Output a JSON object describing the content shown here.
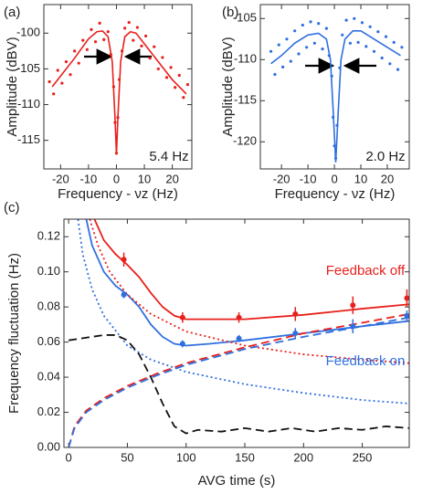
{
  "chart_data": [
    {
      "type": "scatter",
      "panel_label": "(a)",
      "annotation": "5.4 Hz",
      "x_label": "Frequency - νz (Hz)",
      "y_label": "Amplitude (dBV)",
      "xlim": [
        -26,
        27
      ],
      "ylim": [
        -119,
        -96
      ],
      "xticks": [
        -20,
        -10,
        0,
        10,
        20
      ],
      "yticks": [
        -100,
        -105,
        -110,
        -115
      ],
      "series": [
        {
          "style": "points",
          "color": "#e8201c",
          "x": [
            -24,
            -22.5,
            -21,
            -19.5,
            -18,
            -16.5,
            -15,
            -13.5,
            -12,
            -10.5,
            -9,
            -7.5,
            -6,
            -4.5,
            -3,
            -2,
            -1,
            -0.5,
            0,
            0.5,
            1,
            2,
            3,
            4.5,
            6,
            7.5,
            9,
            10.5,
            12,
            13.5,
            15,
            16.5,
            18,
            19.5,
            21,
            22.5,
            24,
            25.5
          ],
          "values": [
            -106.8,
            -108.5,
            -105.2,
            -107,
            -104,
            -105.8,
            -102.5,
            -104.2,
            -101,
            -102.3,
            -99.5,
            -101.2,
            -98.6,
            -100.9,
            -99.8,
            -103,
            -107.5,
            -112.5,
            -116.8,
            -111.8,
            -106.5,
            -102.5,
            -99.3,
            -98.5,
            -101,
            -99.2,
            -101.8,
            -100.4,
            -103.5,
            -101.9,
            -105,
            -103.4,
            -106.2,
            -104.8,
            -107.6,
            -105.9,
            -109,
            -107.2
          ]
        },
        {
          "style": "solid",
          "color": "#e8201c",
          "x": [
            -23,
            -20,
            -15,
            -10,
            -7,
            -5,
            -3,
            -1.5,
            -0.5,
            0,
            0.5,
            1.5,
            3,
            5,
            7,
            10,
            15,
            20,
            25
          ],
          "values": [
            -107.5,
            -106,
            -103.5,
            -100.8,
            -99.8,
            -99.7,
            -100.5,
            -104,
            -112,
            -117,
            -112,
            -104,
            -100.5,
            -99.8,
            -100,
            -101.5,
            -104,
            -106.5,
            -108.5
          ]
        }
      ]
    },
    {
      "type": "scatter",
      "panel_label": "(b)",
      "annotation": "2.0 Hz",
      "x_label": "Frequency - νz (Hz)",
      "y_label": "Amplitude (dBV)",
      "xlim": [
        -28,
        28.3
      ],
      "ylim": [
        -123.3,
        -103.3
      ],
      "xticks": [
        -20,
        -10,
        0,
        10,
        20
      ],
      "yticks": [
        -105,
        -110,
        -115,
        -120
      ],
      "series": [
        {
          "style": "points",
          "color": "#2f6fe0",
          "x": [
            -24,
            -22.5,
            -21,
            -19.5,
            -18,
            -16.5,
            -15,
            -13.5,
            -12,
            -10.5,
            -9,
            -7.5,
            -6,
            -4.5,
            -3,
            -2,
            -1,
            -0.5,
            0,
            0.5,
            1,
            2,
            3,
            4.5,
            6,
            7.5,
            9,
            10.5,
            12,
            13.5,
            15,
            16.5,
            18,
            19.5,
            21,
            22.5,
            24,
            25.5
          ],
          "values": [
            -109,
            -111.8,
            -108.2,
            -110.9,
            -107.5,
            -110.2,
            -106.5,
            -109.3,
            -105.8,
            -108.5,
            -105.4,
            -108,
            -105.6,
            -108.7,
            -106.2,
            -109.5,
            -112,
            -117,
            -120.5,
            -122,
            -118,
            -111,
            -107,
            -105.2,
            -108,
            -105,
            -107.9,
            -105.5,
            -108.4,
            -106,
            -109,
            -106.6,
            -109.8,
            -107.2,
            -110.5,
            -107.9,
            -111.2,
            -108.5
          ]
        },
        {
          "style": "solid",
          "color": "#2f6fe0",
          "x": [
            -24,
            -20,
            -15,
            -10,
            -6,
            -3,
            -1.5,
            -0.5,
            0.5,
            1.5,
            2.5,
            4,
            7,
            10,
            15,
            20,
            25
          ],
          "values": [
            -110.5,
            -109.5,
            -108,
            -107,
            -106.8,
            -107.5,
            -110,
            -116,
            -122.5,
            -116,
            -110,
            -107.5,
            -106.5,
            -106.5,
            -107.5,
            -108.5,
            -109.5
          ]
        }
      ]
    },
    {
      "type": "line",
      "panel_label": "(c)",
      "x_label": "AVG time (s)",
      "y_label": "Frequency fluctuation (Hz)",
      "xlim": [
        -4,
        290
      ],
      "ylim": [
        0,
        0.13
      ],
      "xticks": [
        0,
        50,
        100,
        150,
        200,
        250
      ],
      "yticks": [
        {
          "value": 0,
          "label": "0.00"
        },
        0.02,
        0.04,
        0.06,
        0.08,
        {
          "value": 0.1,
          "label": "0.10"
        },
        0.12
      ],
      "annotations": [
        {
          "text": "Feedback off",
          "color": "#e8201c"
        },
        {
          "text": "Feedback on",
          "color": "#2f6fe0"
        }
      ],
      "series": [
        {
          "style": "solid",
          "color": "#e8201c",
          "x": [
            22,
            30,
            40,
            50,
            60,
            70,
            80,
            90,
            100,
            120,
            150,
            200,
            250,
            290
          ],
          "values": [
            0.13,
            0.118,
            0.11,
            0.104,
            0.097,
            0.088,
            0.08,
            0.075,
            0.073,
            0.073,
            0.073,
            0.0755,
            0.079,
            0.0815
          ]
        },
        {
          "style": "solid",
          "color": "#2f6fe0",
          "x": [
            15,
            20,
            30,
            40,
            50,
            60,
            70,
            80,
            90,
            100,
            120,
            150,
            200,
            250,
            290
          ],
          "values": [
            0.13,
            0.115,
            0.1,
            0.092,
            0.087,
            0.08,
            0.07,
            0.063,
            0.059,
            0.058,
            0.059,
            0.061,
            0.065,
            0.069,
            0.072
          ]
        },
        {
          "style": "dotted",
          "color": "#e8201c",
          "x": [
            18,
            25,
            35,
            50,
            70,
            100,
            150,
            200,
            250,
            290
          ],
          "values": [
            0.13,
            0.115,
            0.1,
            0.087,
            0.076,
            0.066,
            0.058,
            0.053,
            0.05,
            0.048
          ]
        },
        {
          "style": "dotted",
          "color": "#2f6fe0",
          "x": [
            8,
            12,
            20,
            30,
            50,
            70,
            100,
            150,
            200,
            250,
            290
          ],
          "values": [
            0.13,
            0.11,
            0.09,
            0.075,
            0.058,
            0.05,
            0.043,
            0.036,
            0.031,
            0.027,
            0.025
          ]
        },
        {
          "style": "dashed",
          "color": "#e8201c",
          "x": [
            0,
            5,
            15,
            30,
            50,
            75,
            100,
            150,
            200,
            250,
            290
          ],
          "values": [
            0,
            0.012,
            0.021,
            0.028,
            0.035,
            0.042,
            0.048,
            0.057,
            0.065,
            0.071,
            0.076
          ]
        },
        {
          "style": "dashed",
          "color": "#2f6fe0",
          "x": [
            0,
            5,
            15,
            30,
            50,
            75,
            100,
            150,
            200,
            250,
            290
          ],
          "values": [
            0,
            0.011,
            0.02,
            0.027,
            0.034,
            0.041,
            0.047,
            0.056,
            0.063,
            0.069,
            0.074
          ]
        },
        {
          "style": "dashed",
          "color": "#111111",
          "x": [
            0,
            10,
            20,
            30,
            40,
            50,
            60,
            70,
            80,
            90,
            100,
            110,
            130,
            150,
            170,
            190,
            210,
            230,
            250,
            270,
            290
          ],
          "values": [
            0.061,
            0.062,
            0.063,
            0.064,
            0.064,
            0.061,
            0.053,
            0.04,
            0.025,
            0.012,
            0.008,
            0.01,
            0.009,
            0.011,
            0.009,
            0.011,
            0.009,
            0.011,
            0.01,
            0.012,
            0.011
          ]
        },
        {
          "style": "errorbar",
          "color": "#e8201c",
          "x": [
            47,
            97,
            145,
            193,
            242,
            288
          ],
          "values": [
            0.107,
            0.074,
            0.074,
            0.076,
            0.081,
            0.085
          ],
          "errors": [
            0.004,
            0.003,
            0.003,
            0.004,
            0.005,
            0.005
          ]
        },
        {
          "style": "errorbar",
          "color": "#2f6fe0",
          "x": [
            47,
            97,
            145,
            193,
            242,
            288
          ],
          "values": [
            0.087,
            0.059,
            0.062,
            0.065,
            0.069,
            0.075
          ],
          "errors": [
            0.002,
            0.002,
            0.002,
            0.003,
            0.004,
            0.003
          ]
        }
      ]
    }
  ]
}
